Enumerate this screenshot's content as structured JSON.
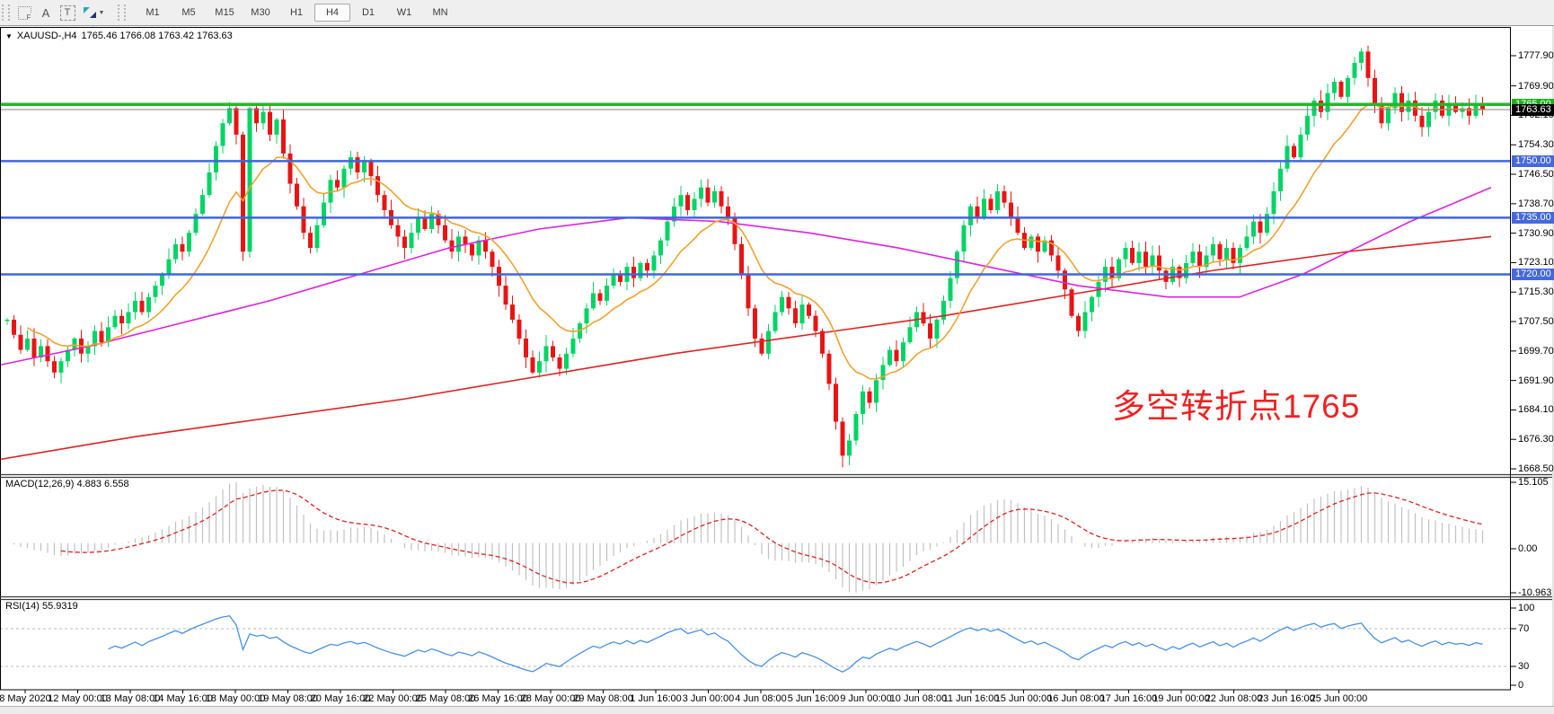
{
  "toolbar": {
    "tools": [
      {
        "name": "pattern-grid-tool",
        "label": "F"
      },
      {
        "name": "text-tool",
        "label": "A"
      },
      {
        "name": "textbox-tool",
        "label": "T"
      },
      {
        "name": "arrows-tool",
        "label": ""
      }
    ],
    "timeframes": [
      "M1",
      "M5",
      "M15",
      "M30",
      "H1",
      "H4",
      "D1",
      "W1",
      "MN"
    ],
    "active_timeframe": "H4"
  },
  "chart": {
    "symbol_title": "XAUUSD-,H4",
    "quote_line": "1765.46 1766.08 1763.42 1763.63",
    "annotation": "多空转折点1765"
  },
  "chart_data": {
    "type": "candlestick",
    "symbol": "XAUUSD-",
    "timeframe": "H4",
    "quote": {
      "open": 1765.46,
      "high": 1766.08,
      "low": 1763.42,
      "close": 1763.63
    },
    "ylim": [
      1666,
      1786
    ],
    "price_ticks": [
      "1777.90",
      "1769.90",
      "1762.10",
      "1754.30",
      "1746.50",
      "1738.70",
      "1730.90",
      "1723.10",
      "1715.30",
      "1707.50",
      "1699.70",
      "1691.90",
      "1684.10",
      "1676.30",
      "1668.50"
    ],
    "levels": [
      {
        "label": "1765.00",
        "price": 1765.0,
        "style": "green"
      },
      {
        "label": "1750.00",
        "price": 1750.0,
        "style": "blue"
      },
      {
        "label": "1735.00",
        "price": 1735.0,
        "style": "blue"
      },
      {
        "label": "1720.00",
        "price": 1720.0,
        "style": "blue"
      }
    ],
    "current_price": {
      "label": "1763.63",
      "price": 1763.63
    },
    "closes": [
      1708,
      1704,
      1700,
      1703,
      1698,
      1701,
      1697,
      1694,
      1697,
      1700,
      1703,
      1699,
      1701,
      1705,
      1702,
      1706,
      1709,
      1707,
      1710,
      1713,
      1710,
      1714,
      1717,
      1720,
      1724,
      1728,
      1726,
      1731,
      1736,
      1741,
      1747,
      1754,
      1760,
      1764,
      1757,
      1726,
      1764,
      1760,
      1763,
      1757,
      1761,
      1752,
      1744,
      1738,
      1731,
      1727,
      1733,
      1739,
      1745,
      1743,
      1748,
      1751,
      1747,
      1750,
      1746,
      1741,
      1737,
      1733,
      1730,
      1727,
      1731,
      1735,
      1732,
      1736,
      1733,
      1729,
      1726,
      1730,
      1728,
      1725,
      1729,
      1726,
      1722,
      1717,
      1712,
      1708,
      1703,
      1698,
      1694,
      1697,
      1701,
      1698,
      1695,
      1699,
      1703,
      1707,
      1711,
      1715,
      1713,
      1717,
      1720,
      1718,
      1722,
      1719,
      1723,
      1721,
      1725,
      1729,
      1734,
      1738,
      1741,
      1737,
      1740,
      1743,
      1739,
      1742,
      1738,
      1735,
      1728,
      1720,
      1711,
      1703,
      1699,
      1705,
      1710,
      1714,
      1711,
      1707,
      1712,
      1709,
      1705,
      1699,
      1691,
      1681,
      1672,
      1676,
      1683,
      1689,
      1686,
      1692,
      1696,
      1700,
      1697,
      1702,
      1706,
      1710,
      1707,
      1703,
      1708,
      1713,
      1719,
      1726,
      1733,
      1738,
      1735,
      1740,
      1737,
      1742,
      1739,
      1735,
      1731,
      1727,
      1730,
      1726,
      1729,
      1725,
      1721,
      1716,
      1709,
      1705,
      1710,
      1714,
      1718,
      1722,
      1719,
      1724,
      1727,
      1723,
      1726,
      1722,
      1725,
      1721,
      1718,
      1722,
      1719,
      1723,
      1726,
      1722,
      1725,
      1728,
      1724,
      1727,
      1723,
      1727,
      1730,
      1734,
      1731,
      1736,
      1742,
      1748,
      1754,
      1751,
      1757,
      1762,
      1766,
      1763,
      1768,
      1771,
      1767,
      1772,
      1776,
      1779,
      1772,
      1765,
      1760,
      1764,
      1768,
      1763,
      1766,
      1762,
      1759,
      1763,
      1766,
      1762,
      1765,
      1763,
      1764,
      1762,
      1765,
      1763.6
    ],
    "wick_overrides": {
      "7": {
        "low": 1692.5
      },
      "33": {
        "high": 1765.6
      },
      "124": {
        "low": 1668.9
      },
      "201": {
        "high": 1779.9
      }
    },
    "ma_orange_period": 13,
    "ma_magenta_points": [
      [
        0,
        1696
      ],
      [
        100,
        1701
      ],
      [
        200,
        1707
      ],
      [
        300,
        1713
      ],
      [
        400,
        1720
      ],
      [
        500,
        1727
      ],
      [
        600,
        1732
      ],
      [
        700,
        1735
      ],
      [
        800,
        1734
      ],
      [
        900,
        1731
      ],
      [
        1000,
        1727
      ],
      [
        1100,
        1722
      ],
      [
        1200,
        1717
      ],
      [
        1300,
        1714
      ],
      [
        1380,
        1714
      ],
      [
        1450,
        1720
      ],
      [
        1510,
        1727
      ],
      [
        1570,
        1734
      ],
      [
        1660,
        1743
      ]
    ],
    "ma_red_points": [
      [
        0,
        1671
      ],
      [
        150,
        1677
      ],
      [
        300,
        1682
      ],
      [
        450,
        1687
      ],
      [
        600,
        1693
      ],
      [
        750,
        1699
      ],
      [
        900,
        1704
      ],
      [
        1050,
        1709
      ],
      [
        1200,
        1715
      ],
      [
        1350,
        1721
      ],
      [
        1500,
        1726
      ],
      [
        1660,
        1730
      ]
    ],
    "macd": {
      "label": "MACD(12,26,9) 4.883 6.558",
      "fast": 12,
      "slow": 26,
      "signal": 9,
      "value": 4.883,
      "signal_value": 6.558,
      "scale_labels": [
        "15.105",
        "0.00",
        "-10.963"
      ]
    },
    "rsi": {
      "label": "RSI(14) 55.9319",
      "period": 14,
      "value": 55.9319,
      "scale_labels": [
        "100",
        "70",
        "30",
        "0"
      ],
      "levels": [
        70,
        30
      ]
    },
    "time_labels": [
      "8 May 2020",
      "12 May 00:00",
      "13 May 08:00",
      "14 May 16:00",
      "18 May 00:00",
      "19 May 08:00",
      "20 May 16:00",
      "22 May 00:00",
      "25 May 08:00",
      "26 May 16:00",
      "28 May 00:00",
      "29 May 08:00",
      "1 Jun 16:00",
      "3 Jun 00:00",
      "4 Jun 08:00",
      "5 Jun 16:00",
      "9 Jun 00:00",
      "10 Jun 08:00",
      "11 Jun 16:00",
      "15 Jun 00:00",
      "16 Jun 08:00",
      "17 Jun 16:00",
      "19 Jun 00:00",
      "22 Jun 08:00",
      "23 Jun 16:00",
      "25 Jun 00:00"
    ]
  },
  "colors": {
    "bull": "#00D464",
    "bear": "#E81414",
    "ma_fast": "#F0A22E",
    "ma_mid": "#DD22DD",
    "ma_slow": "#E02020",
    "level_green": "#28B42C",
    "level_blue": "#4066DE",
    "badge_green": "#1CB41C",
    "badge_blue": "#4668DE",
    "badge_black": "#000000",
    "current_line": "#808080",
    "macd_hist": "#C0C0C0",
    "macd_signal": "#E02020",
    "rsi_line": "#4690E6",
    "rsi_level": "#BBBBBB",
    "annotation": "#EE2222"
  }
}
